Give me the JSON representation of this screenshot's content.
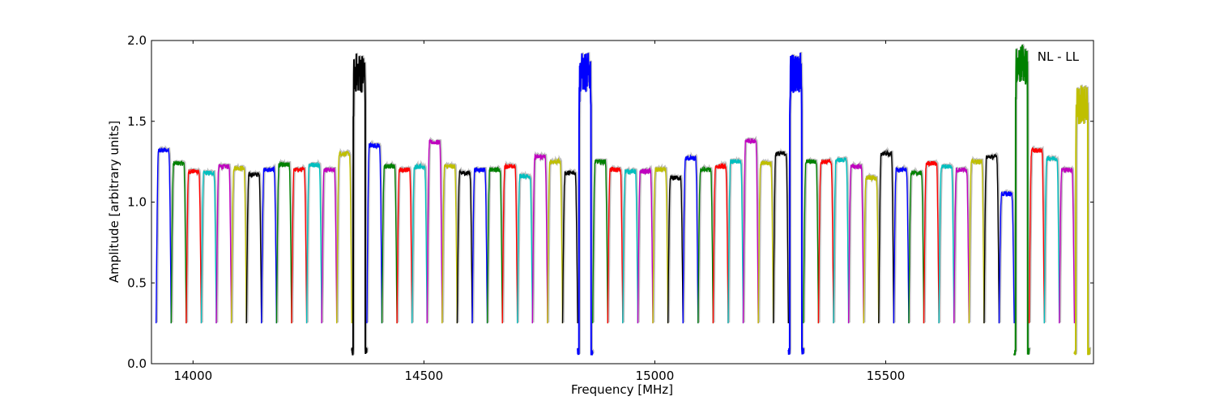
{
  "chart_data": {
    "type": "line",
    "title": "",
    "xlabel": "Frequency [MHz]",
    "ylabel": "Amplitude [arbitrary units]",
    "annotation": "NL - LL",
    "annotation_position": "top-right",
    "xlim": [
      13910,
      15950
    ],
    "ylim": [
      0.0,
      2.0
    ],
    "xticks": [
      14000,
      14500,
      15000,
      15500
    ],
    "xtick_labels": [
      "14000",
      "14500",
      "15000",
      "15500"
    ],
    "yticks": [
      0.0,
      0.5,
      1.0,
      1.5,
      2.0
    ],
    "ytick_labels": [
      "0.0",
      "0.5",
      "1.0",
      "1.5",
      "2.0"
    ],
    "grid": false,
    "legend": "none",
    "band_start": 13920,
    "band_width": 32.6,
    "band_count": 62,
    "band_levels": [
      1.32,
      1.24,
      1.19,
      1.18,
      1.22,
      1.21,
      1.17,
      1.2,
      1.23,
      1.2,
      1.23,
      1.2,
      1.3,
      1.8,
      1.35,
      1.22,
      1.2,
      1.22,
      1.37,
      1.22,
      1.18,
      1.2,
      1.2,
      1.22,
      1.16,
      1.28,
      1.25,
      1.18,
      1.8,
      1.25,
      1.2,
      1.19,
      1.19,
      1.2,
      1.15,
      1.27,
      1.2,
      1.22,
      1.25,
      1.38,
      1.24,
      1.3,
      1.8,
      1.25,
      1.25,
      1.26,
      1.22,
      1.15,
      1.3,
      1.2,
      1.18,
      1.24,
      1.22,
      1.2,
      1.25,
      1.28,
      1.05,
      1.85,
      1.32,
      1.27,
      1.2,
      1.6
    ],
    "color_cycle": [
      "#0000ff",
      "#008000",
      "#ff0000",
      "#00bfbf",
      "#bf00bf",
      "#bfbf00",
      "#000000"
    ],
    "shadow_color": "#bfbfbf"
  }
}
